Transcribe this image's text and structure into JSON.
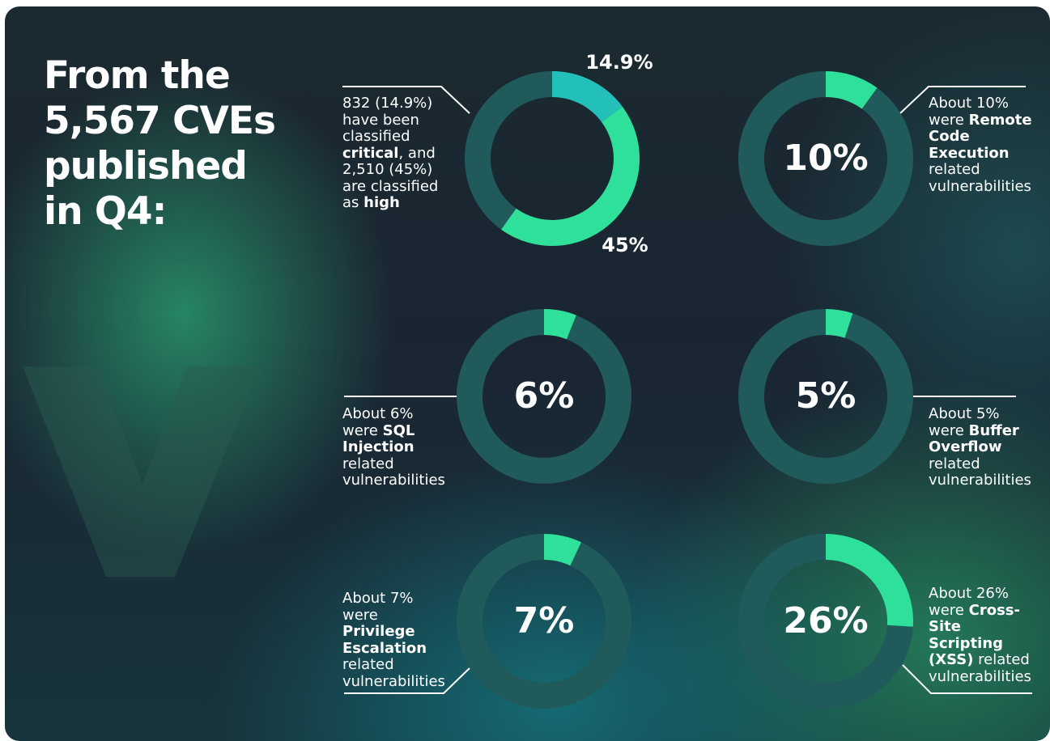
{
  "header": {
    "title": "From the 5,567 CVEs published in Q4:"
  },
  "chart_data": [
    {
      "type": "donut",
      "ylim": [
        0,
        100
      ],
      "values": [
        14.9,
        45
      ],
      "value_labels": [
        "14.9%",
        "45%"
      ],
      "colors": [
        "#22c0b8",
        "#2fe09a"
      ],
      "track_color": "#205a5a",
      "caption": [
        {
          "text": "832 (14.9%) have been classified "
        },
        {
          "text": "critical",
          "bold": true
        },
        {
          "text": ", and 2,510 (45%) are classified as "
        },
        {
          "text": "high",
          "bold": true
        }
      ]
    },
    {
      "type": "donut",
      "ylim": [
        0,
        100
      ],
      "values": [
        10
      ],
      "value_labels": [
        "10%"
      ],
      "colors": [
        "#2fe09a"
      ],
      "track_color": "#205a5a",
      "caption": [
        {
          "text": "About 10% were "
        },
        {
          "text": "Remote Code Execution",
          "bold": true
        },
        {
          "text": " related vulnerabilities"
        }
      ]
    },
    {
      "type": "donut",
      "ylim": [
        0,
        100
      ],
      "values": [
        6
      ],
      "value_labels": [
        "6%"
      ],
      "colors": [
        "#2fe09a"
      ],
      "track_color": "#205a5a",
      "caption": [
        {
          "text": "About 6% were "
        },
        {
          "text": "SQL Injection",
          "bold": true
        },
        {
          "text": " related vulnerabilities"
        }
      ]
    },
    {
      "type": "donut",
      "ylim": [
        0,
        100
      ],
      "values": [
        5
      ],
      "value_labels": [
        "5%"
      ],
      "colors": [
        "#2fe09a"
      ],
      "track_color": "#205a5a",
      "caption": [
        {
          "text": "About 5% were "
        },
        {
          "text": "Buffer Overflow",
          "bold": true
        },
        {
          "text": " related vulnerabilities"
        }
      ]
    },
    {
      "type": "donut",
      "ylim": [
        0,
        100
      ],
      "values": [
        7
      ],
      "value_labels": [
        "7%"
      ],
      "colors": [
        "#2fe09a"
      ],
      "track_color": "#205a5a",
      "caption": [
        {
          "text": "About 7% were "
        },
        {
          "text": "Privilege Escalation",
          "bold": true
        },
        {
          "text": " related vulnerabilities"
        }
      ]
    },
    {
      "type": "donut",
      "ylim": [
        0,
        100
      ],
      "values": [
        26
      ],
      "value_labels": [
        "26%"
      ],
      "colors": [
        "#2fe09a"
      ],
      "track_color": "#205a5a",
      "caption": [
        {
          "text": "About 26% were "
        },
        {
          "text": "Cross-Site Scripting (XSS)",
          "bold": true
        },
        {
          "text": " related vulnerabilities"
        }
      ]
    }
  ]
}
